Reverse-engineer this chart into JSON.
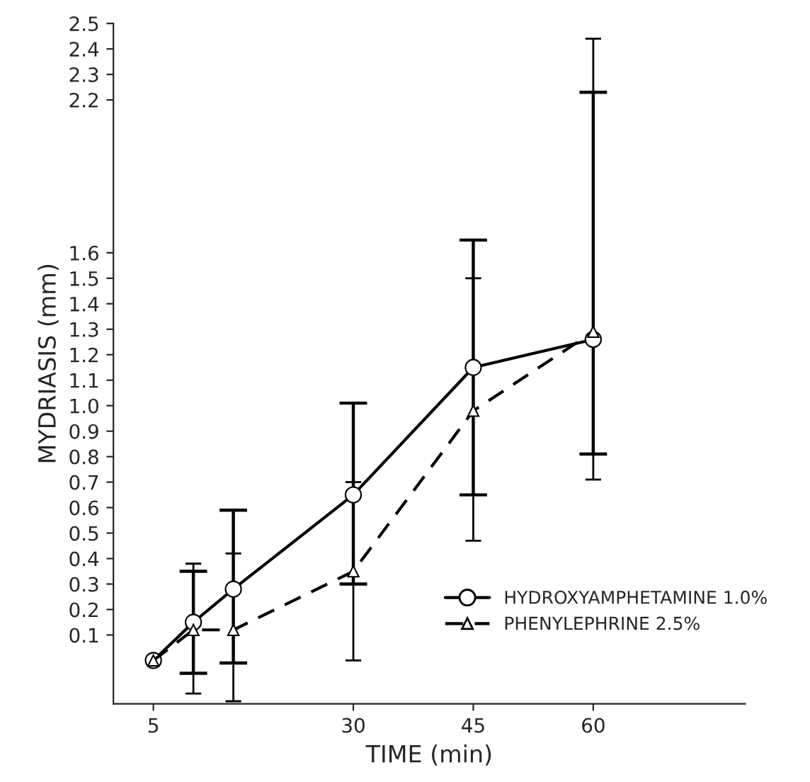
{
  "chart_data": {
    "type": "line",
    "xlabel": "TIME (min)",
    "ylabel": "MYDRIASIS (mm)",
    "x": [
      5,
      10,
      15,
      30,
      45,
      60
    ],
    "series": [
      {
        "name": "HYDROXYAMPHETAMINE 1.0%",
        "color": "#000000",
        "marker": "circle",
        "line_style": "solid",
        "values": [
          0.0,
          0.15,
          0.28,
          0.65,
          1.15,
          1.26
        ],
        "errors": [
          null,
          [
            -0.05,
            0.35
          ],
          [
            -0.01,
            0.59
          ],
          [
            0.3,
            1.01
          ],
          [
            0.65,
            1.65
          ],
          [
            0.81,
            2.23
          ]
        ]
      },
      {
        "name": "PHENYLEPHRINE 2.5%",
        "color": "#000000",
        "marker": "triangle",
        "line_style": "dashed",
        "values": [
          0.0,
          0.12,
          0.12,
          0.35,
          0.98,
          1.29
        ],
        "errors": [
          null,
          [
            -0.13,
            0.38
          ],
          [
            -0.16,
            0.42
          ],
          [
            0.0,
            0.7
          ],
          [
            0.47,
            1.5
          ],
          [
            0.71,
            2.44
          ]
        ]
      }
    ],
    "xlim": [
      0,
      79
    ],
    "xticks": [
      5,
      30,
      45,
      60
    ],
    "ylim": [
      -0.17,
      2.5
    ],
    "yticks": [
      0.1,
      0.2,
      0.3,
      0.4,
      0.5,
      0.6,
      0.7,
      0.8,
      0.9,
      {
        "value": 1.0,
        "label": "1.0"
      },
      1.1,
      1.2,
      1.3,
      1.4,
      1.5,
      1.6,
      2.2,
      2.3,
      2.4,
      2.5
    ],
    "grid": false,
    "legend": "bottom right"
  }
}
